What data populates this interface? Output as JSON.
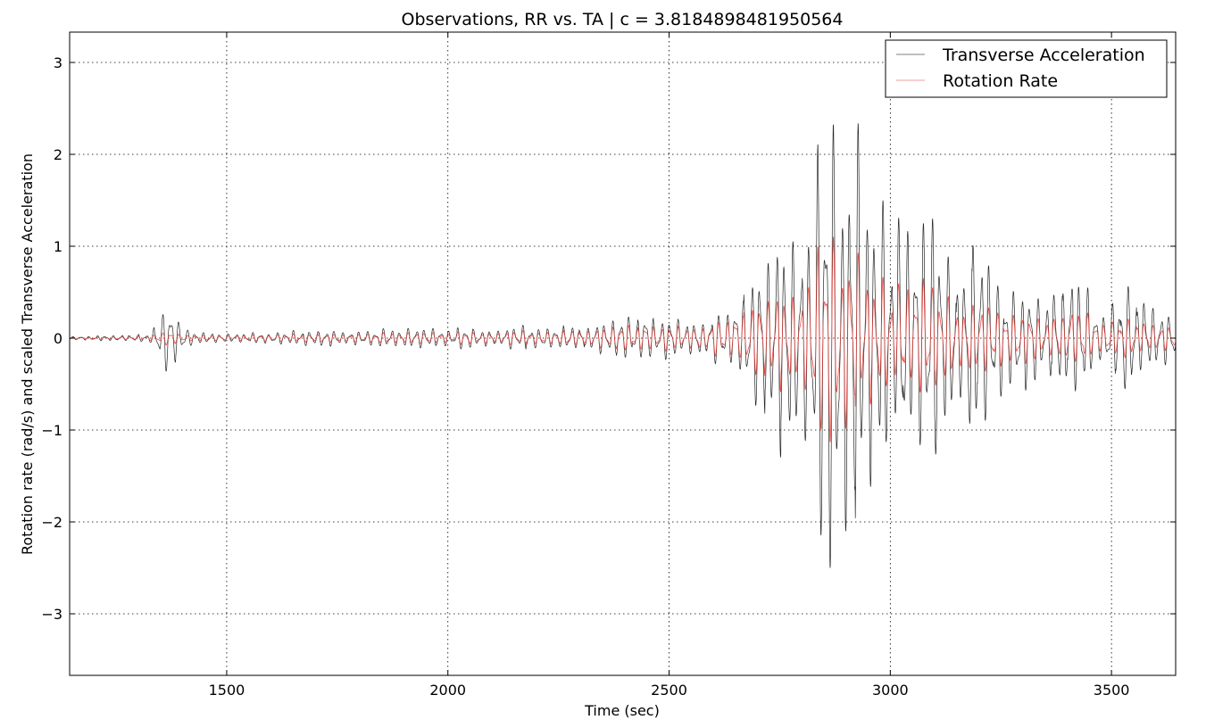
{
  "chart_data": {
    "type": "line",
    "title": "Observations, RR vs. TA | c = 3.8184898481950564",
    "xlabel": "Time (sec)",
    "ylabel": "Rotation rate (rad/s) and scaled Transverse Acceleration",
    "xlim": [
      1145,
      3645
    ],
    "ylim": [
      -3.67,
      3.33
    ],
    "xticks": [
      1500,
      2000,
      2500,
      3000,
      3500
    ],
    "xtick_labels": [
      "1500",
      "2000",
      "2500",
      "3000",
      "3500"
    ],
    "yticks": [
      3,
      2,
      1,
      0,
      -1,
      -2,
      -3
    ],
    "ytick_labels": [
      "3",
      "2",
      "1",
      "0",
      "−1",
      "−2",
      "−3"
    ],
    "grid": true,
    "legend_position": "top-right",
    "series": [
      {
        "name": "Transverse Acceleration",
        "color": "#000000",
        "envelope_x": [
          1145,
          1330,
          1345,
          1365,
          1385,
          1400,
          1430,
          1500,
          1600,
          1700,
          1800,
          1900,
          2000,
          2100,
          2200,
          2300,
          2400,
          2450,
          2500,
          2550,
          2600,
          2650,
          2700,
          2720,
          2740,
          2760,
          2780,
          2800,
          2820,
          2840,
          2855,
          2865,
          2875,
          2885,
          2895,
          2905,
          2915,
          2925,
          2935,
          2950,
          2975,
          3000,
          3015,
          3030,
          3045,
          3060,
          3080,
          3100,
          3130,
          3160,
          3180,
          3210,
          3240,
          3270,
          3300,
          3340,
          3380,
          3410,
          3425,
          3445,
          3480,
          3510,
          3540,
          3580,
          3610,
          3645
        ],
        "envelope_amp": [
          0.02,
          0.05,
          0.3,
          0.4,
          0.3,
          0.15,
          0.07,
          0.06,
          0.07,
          0.1,
          0.1,
          0.12,
          0.12,
          0.12,
          0.15,
          0.15,
          0.25,
          0.3,
          0.25,
          0.2,
          0.3,
          0.45,
          0.8,
          1.2,
          1.5,
          1.7,
          1.6,
          1.5,
          1.3,
          2.6,
          2.9,
          3.3,
          2.6,
          2.5,
          2.3,
          2.2,
          3.3,
          2.8,
          2.1,
          1.5,
          1.8,
          1.4,
          1.4,
          2.0,
          1.5,
          1.2,
          1.3,
          1.5,
          1.0,
          1.1,
          1.35,
          1.1,
          0.8,
          0.7,
          0.7,
          0.6,
          0.7,
          1.0,
          1.0,
          0.6,
          0.4,
          0.6,
          0.7,
          0.5,
          0.4,
          0.3
        ]
      },
      {
        "name": "Rotation Rate",
        "color": "#e8403a",
        "envelope_x": [
          1145,
          1330,
          1345,
          1365,
          1385,
          1400,
          1430,
          1500,
          1600,
          1700,
          1800,
          1900,
          2000,
          2100,
          2200,
          2300,
          2400,
          2450,
          2500,
          2550,
          2600,
          2650,
          2700,
          2720,
          2740,
          2760,
          2780,
          2800,
          2820,
          2840,
          2855,
          2865,
          2875,
          2885,
          2895,
          2905,
          2915,
          2925,
          2935,
          2950,
          2975,
          3000,
          3015,
          3030,
          3045,
          3060,
          3080,
          3100,
          3130,
          3160,
          3180,
          3210,
          3240,
          3270,
          3300,
          3340,
          3380,
          3410,
          3425,
          3445,
          3480,
          3510,
          3540,
          3580,
          3610,
          3645
        ],
        "envelope_amp": [
          0.01,
          0.03,
          0.08,
          0.1,
          0.08,
          0.05,
          0.04,
          0.04,
          0.05,
          0.06,
          0.07,
          0.08,
          0.08,
          0.09,
          0.1,
          0.12,
          0.18,
          0.2,
          0.18,
          0.15,
          0.25,
          0.35,
          0.5,
          0.7,
          0.8,
          0.9,
          0.8,
          0.8,
          0.9,
          1.4,
          1.6,
          1.75,
          1.5,
          1.4,
          1.2,
          1.3,
          1.4,
          1.3,
          1.0,
          0.8,
          0.9,
          0.8,
          0.8,
          0.9,
          0.9,
          0.7,
          0.8,
          0.7,
          0.6,
          0.6,
          0.55,
          0.5,
          0.45,
          0.4,
          0.4,
          0.35,
          0.35,
          0.55,
          0.5,
          0.35,
          0.3,
          0.3,
          0.3,
          0.25,
          0.2,
          0.2
        ]
      }
    ]
  }
}
